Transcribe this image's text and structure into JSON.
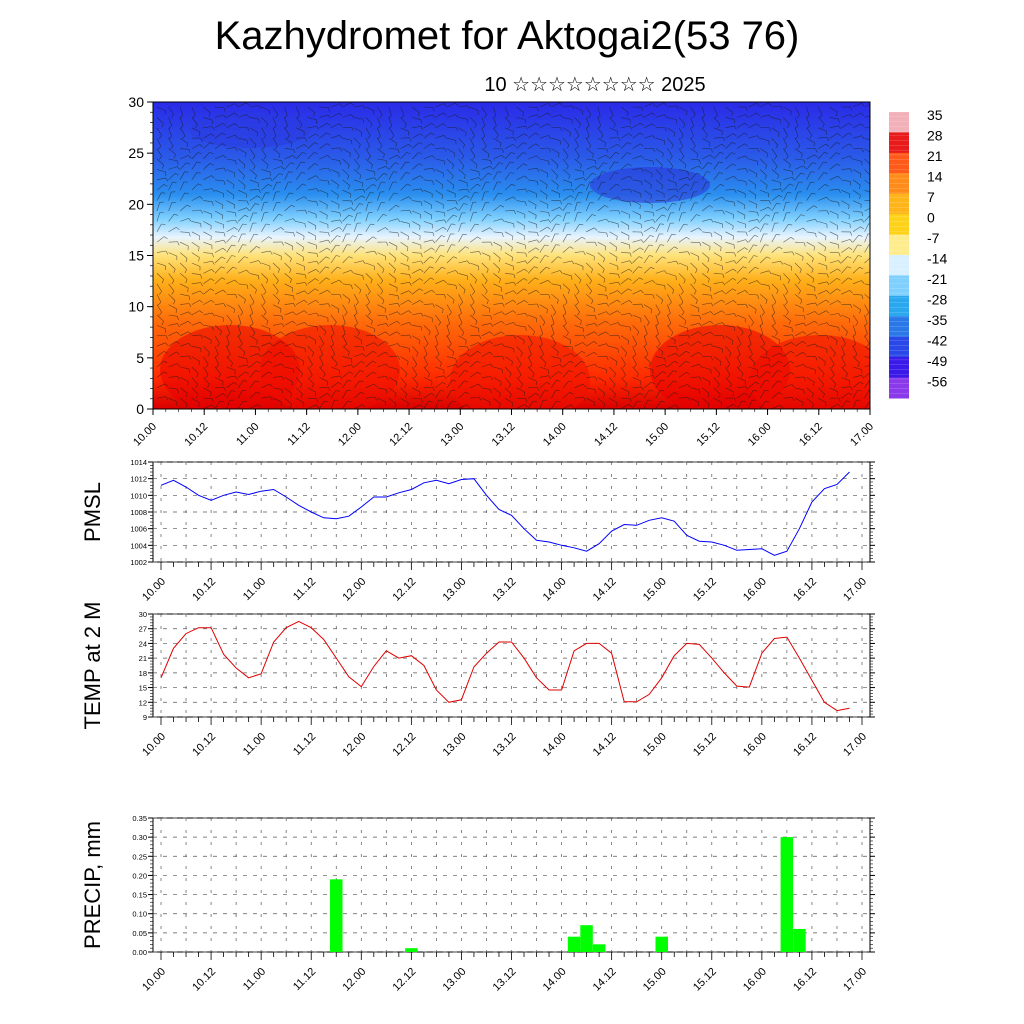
{
  "title": "Kazhydromet for Aktogai2(53 76)",
  "subtitle": "10 ☆☆☆☆☆☆☆☆ 2025",
  "x_time_labels": [
    "10.00",
    "10.12",
    "11.00",
    "11.12",
    "12.00",
    "12.12",
    "13.00",
    "13.12",
    "14.00",
    "14.12",
    "15.00",
    "15.12",
    "16.00",
    "16.12",
    "17.00"
  ],
  "colorbar": {
    "labels": [
      "35",
      "28",
      "21",
      "14",
      "7",
      "0",
      "-7",
      "-14",
      "-21",
      "-28",
      "-35",
      "-42",
      "-49",
      "-56"
    ],
    "colors": [
      "#f2b0b8",
      "#e81a1a",
      "#ff5a1a",
      "#ff8c1a",
      "#ffb41a",
      "#ffd21a",
      "#ffec8c",
      "#d8f0ff",
      "#7fd0ff",
      "#2aa8ef",
      "#2a78e8",
      "#2a48e8",
      "#3a1ae8",
      "#8a3aea"
    ]
  },
  "chart_data": [
    {
      "type": "heatmap",
      "description_axis": "height",
      "ylabel": "",
      "ylim": [
        0,
        30
      ],
      "yticks": [
        "0",
        "5",
        "10",
        "15",
        "20",
        "25",
        "30"
      ],
      "x": [
        "10.00",
        "10.12",
        "11.00",
        "11.12",
        "12.00",
        "12.12",
        "13.00",
        "13.12",
        "14.00",
        "14.12",
        "15.00",
        "15.12",
        "16.00",
        "16.12",
        "17.00"
      ],
      "colorbar_range": [
        -56,
        35
      ]
    },
    {
      "type": "line",
      "ylabel": "PMSL",
      "ylim": [
        1002,
        1014
      ],
      "yticks": [
        "1002",
        "1004",
        "1006",
        "1008",
        "1010",
        "1012",
        "1014"
      ],
      "color": "#0000ff",
      "x_start": 0,
      "x_step": 3,
      "values": [
        1011.2,
        1011.8,
        1011.0,
        1010.0,
        1009.4,
        1010.0,
        1010.4,
        1010.1,
        1010.5,
        1010.7,
        1009.8,
        1008.8,
        1008.0,
        1007.3,
        1007.2,
        1007.5,
        1008.6,
        1009.8,
        1009.8,
        1010.3,
        1010.7,
        1011.5,
        1011.8,
        1011.4,
        1011.9,
        1012.0,
        1010.0,
        1008.3,
        1007.6,
        1006.0,
        1004.6,
        1004.4,
        1004.0,
        1003.7,
        1003.3,
        1004.2,
        1005.7,
        1006.5,
        1006.4,
        1007.0,
        1007.3,
        1006.9,
        1005.2,
        1004.5,
        1004.4,
        1004.0,
        1003.4,
        1003.5,
        1003.6,
        1002.8,
        1003.3,
        1006.0,
        1009.2,
        1010.8,
        1011.3,
        1012.8
      ]
    },
    {
      "type": "line",
      "ylabel": "TEMP at 2 M",
      "ylim": [
        9,
        30
      ],
      "yticks": [
        "9",
        "12",
        "15",
        "18",
        "21",
        "24",
        "27",
        "30"
      ],
      "color": "#e00000",
      "x_start": 0,
      "x_step": 3,
      "values": [
        17,
        23,
        26,
        27.2,
        27.2,
        21.8,
        19,
        17,
        17.8,
        24.3,
        27.2,
        28.5,
        27.2,
        24.8,
        21,
        17.2,
        15.2,
        19.3,
        22.5,
        21,
        21.5,
        19.5,
        14.5,
        12,
        12.5,
        19.2,
        22,
        24.3,
        24.3,
        21,
        17,
        14.5,
        14.5,
        22.5,
        24,
        24,
        22,
        12.1,
        12.1,
        13.6,
        17,
        21.5,
        24,
        23.8,
        21,
        18,
        15.3,
        15.1,
        22,
        25,
        25.3,
        21,
        16.5,
        12,
        10.3,
        10.8
      ]
    },
    {
      "type": "bar",
      "ylabel": "PRECIP, mm",
      "ylim": [
        0,
        0.35
      ],
      "yticks": [
        "0.00",
        "0.05",
        "0.10",
        "0.15",
        "0.20",
        "0.25",
        "0.30",
        "0.35"
      ],
      "color": "#00ff00",
      "bar_hours": [
        42,
        60,
        99,
        102,
        105,
        120,
        150,
        153
      ],
      "values": [
        0.19,
        0.01,
        0.04,
        0.07,
        0.02,
        0.04,
        0.3,
        0.06
      ]
    }
  ]
}
